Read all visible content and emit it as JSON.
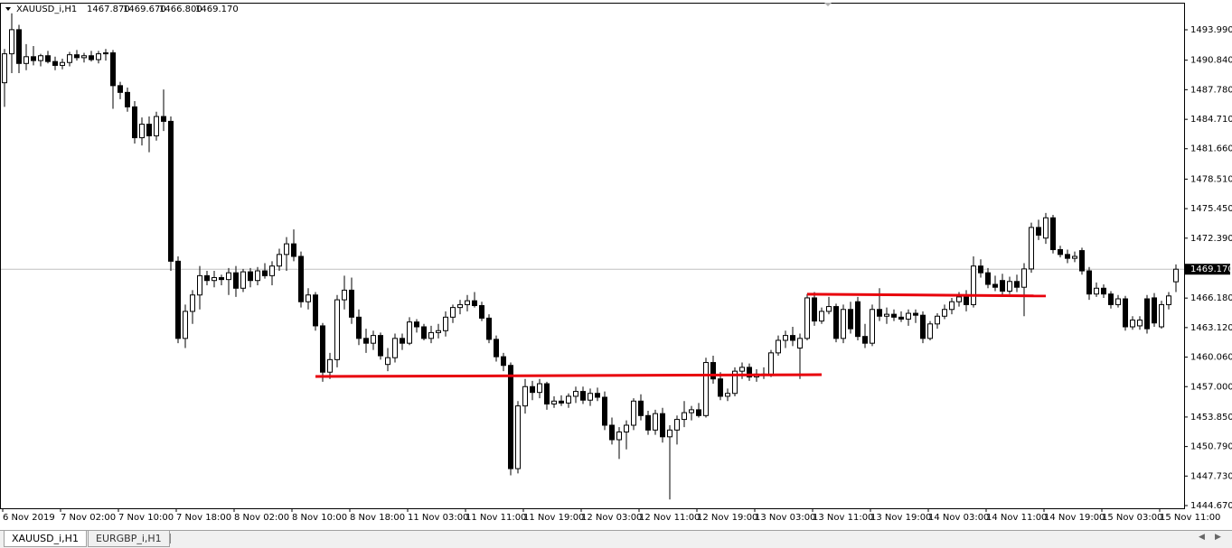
{
  "header": {
    "symbol": "XAUUSD_i,H1",
    "ohlc": [
      {
        "value": 1467.87,
        "label": "1467.870"
      },
      {
        "value": 1469.67,
        "label": "1469.670"
      },
      {
        "value": 1466.8,
        "label": "1466.800"
      },
      {
        "value": 1469.17,
        "label": "1469.170"
      }
    ]
  },
  "chart_data": {
    "type": "candlestick",
    "categories": [
      "6 Nov 2019",
      null,
      null,
      null,
      null,
      null,
      null,
      null,
      "7 Nov 02:00",
      null,
      null,
      null,
      null,
      null,
      null,
      null,
      "7 Nov 10:00",
      null,
      null,
      null,
      null,
      null,
      null,
      null,
      "7 Nov 18:00",
      null,
      null,
      null,
      null,
      null,
      null,
      null,
      "8 Nov 02:00",
      null,
      null,
      null,
      null,
      null,
      null,
      null,
      "8 Nov 10:00",
      null,
      null,
      null,
      null,
      null,
      null,
      null,
      "8 Nov 18:00",
      null,
      null,
      null,
      null,
      null,
      null,
      null,
      "11 Nov 03:00",
      null,
      null,
      null,
      null,
      null,
      null,
      null,
      "11 Nov 11:00",
      null,
      null,
      null,
      null,
      null,
      null,
      null,
      "11 Nov 19:00",
      null,
      null,
      null,
      null,
      null,
      null,
      null,
      "12 Nov 03:00",
      null,
      null,
      null,
      null,
      null,
      null,
      null,
      "12 Nov 11:00",
      null,
      null,
      null,
      null,
      null,
      null,
      null,
      "12 Nov 19:00",
      null,
      null,
      null,
      null,
      null,
      null,
      null,
      "13 Nov 03:00",
      null,
      null,
      null,
      null,
      null,
      null,
      null,
      "13 Nov 11:00",
      null,
      null,
      null,
      null,
      null,
      null,
      null,
      "13 Nov 19:00",
      null,
      null,
      null,
      null,
      null,
      null,
      null,
      "14 Nov 03:00",
      null,
      null,
      null,
      null,
      null,
      null,
      null,
      "14 Nov 11:00",
      null,
      null,
      null,
      null,
      null,
      null,
      null,
      "14 Nov 19:00",
      null,
      null,
      null,
      null,
      null,
      null,
      null,
      "15 Nov 03:00",
      null,
      null,
      null,
      null,
      null,
      null,
      null,
      "15 Nov 11:00",
      null,
      null
    ],
    "ohlc": [
      [
        1488.5,
        1492,
        1486,
        1491.5
      ],
      [
        1491.5,
        1495.7,
        1489.5,
        1494
      ],
      [
        1494,
        1494.5,
        1489.5,
        1490.5
      ],
      [
        1490.5,
        1492.5,
        1489.8,
        1491.2
      ],
      [
        1491.2,
        1492.3,
        1490.3,
        1490.8
      ],
      [
        1490.8,
        1491.5,
        1490.2,
        1491.3
      ],
      [
        1491.3,
        1491.8,
        1490.5,
        1490.7
      ],
      [
        1490.7,
        1491.2,
        1489.8,
        1490.3
      ],
      [
        1490.3,
        1491,
        1489.9,
        1490.6
      ],
      [
        1490.6,
        1491.7,
        1490.2,
        1491.4
      ],
      [
        1491.4,
        1491.9,
        1490.8,
        1491.1
      ],
      [
        1491.1,
        1491.6,
        1490.6,
        1491.3
      ],
      [
        1491.3,
        1491.8,
        1490.7,
        1490.9
      ],
      [
        1490.9,
        1491.8,
        1490.5,
        1491.5
      ],
      [
        1491.5,
        1492,
        1490.8,
        1491.6
      ],
      [
        1491.6,
        1491.9,
        1485.8,
        1488.2
      ],
      [
        1488.2,
        1488.6,
        1486.8,
        1487.5
      ],
      [
        1487.5,
        1488,
        1485.5,
        1486
      ],
      [
        1486,
        1486.6,
        1482.2,
        1482.8
      ],
      [
        1482.8,
        1484.9,
        1482,
        1484.2
      ],
      [
        1484.2,
        1485,
        1481.3,
        1483
      ],
      [
        1483,
        1485.5,
        1482.5,
        1485
      ],
      [
        1485,
        1487.8,
        1483.5,
        1484.5
      ],
      [
        1484.5,
        1485,
        1469,
        1470
      ],
      [
        1470,
        1470.5,
        1461.5,
        1462
      ],
      [
        1462,
        1465.5,
        1461,
        1464.8
      ],
      [
        1464.8,
        1467,
        1463.5,
        1466.5
      ],
      [
        1466.5,
        1469.5,
        1465,
        1468.5
      ],
      [
        1468.5,
        1469,
        1467.5,
        1468
      ],
      [
        1468,
        1469,
        1467.3,
        1468.3
      ],
      [
        1468.3,
        1468.6,
        1467.5,
        1468.1
      ],
      [
        1468.1,
        1469.3,
        1466.5,
        1468.8
      ],
      [
        1468.8,
        1469.5,
        1466.3,
        1467.2
      ],
      [
        1467.2,
        1469.2,
        1466.8,
        1468.9
      ],
      [
        1468.9,
        1469.3,
        1467.3,
        1468
      ],
      [
        1468,
        1469.4,
        1467.5,
        1469
      ],
      [
        1469,
        1469.8,
        1468.2,
        1468.5
      ],
      [
        1468.5,
        1470,
        1467.5,
        1469.5
      ],
      [
        1469.5,
        1471.3,
        1469,
        1470.7
      ],
      [
        1470.7,
        1472.5,
        1469,
        1471.8
      ],
      [
        1471.8,
        1473.3,
        1470,
        1470.5
      ],
      [
        1470.5,
        1471,
        1465.2,
        1465.8
      ],
      [
        1465.8,
        1467.2,
        1465,
        1466.5
      ],
      [
        1466.5,
        1466.8,
        1462.8,
        1463.3
      ],
      [
        1463.3,
        1463.6,
        1457.5,
        1458.5
      ],
      [
        1458.5,
        1460.5,
        1457.8,
        1459.8
      ],
      [
        1459.8,
        1466.5,
        1459,
        1466
      ],
      [
        1466,
        1468.5,
        1465,
        1467
      ],
      [
        1467,
        1468.3,
        1463.5,
        1464.2
      ],
      [
        1464.2,
        1465,
        1461.3,
        1462
      ],
      [
        1462,
        1463,
        1460.5,
        1461.5
      ],
      [
        1461.5,
        1462.8,
        1460.8,
        1462.3
      ],
      [
        1462.3,
        1462.6,
        1459.8,
        1460.2
      ],
      [
        1459.3,
        1461,
        1458.6,
        1460
      ],
      [
        1460,
        1462.5,
        1459.5,
        1462
      ],
      [
        1462,
        1462.5,
        1460.8,
        1461.5
      ],
      [
        1461.5,
        1464.2,
        1461.3,
        1463.7
      ],
      [
        1463.7,
        1464,
        1462.6,
        1463.2
      ],
      [
        1463.2,
        1463.5,
        1461.8,
        1462
      ],
      [
        1462,
        1463.3,
        1461.5,
        1462.6
      ],
      [
        1462.6,
        1463.5,
        1462,
        1462.8
      ],
      [
        1462.8,
        1464.8,
        1462.2,
        1464.2
      ],
      [
        1464.2,
        1465.5,
        1463.6,
        1465.2
      ],
      [
        1465.2,
        1466,
        1464.5,
        1465.5
      ],
      [
        1465.5,
        1466.5,
        1464.8,
        1465.9
      ],
      [
        1465.9,
        1466.8,
        1465.2,
        1465.4
      ],
      [
        1465.4,
        1465.8,
        1463.8,
        1464.1
      ],
      [
        1464.1,
        1464.5,
        1461.5,
        1461.9
      ],
      [
        1461.9,
        1462.3,
        1459.6,
        1460.1
      ],
      [
        1460.1,
        1460.5,
        1458.6,
        1459.2
      ],
      [
        1459.2,
        1459.5,
        1447.8,
        1448.5
      ],
      [
        1448.5,
        1455.5,
        1448,
        1455
      ],
      [
        1455,
        1457.8,
        1454.2,
        1457
      ],
      [
        1457,
        1457.6,
        1455.6,
        1456.4
      ],
      [
        1456.4,
        1457.8,
        1455.8,
        1457.3
      ],
      [
        1457.3,
        1457.5,
        1454.6,
        1455.2
      ],
      [
        1455.2,
        1456,
        1454.8,
        1455.5
      ],
      [
        1455.5,
        1456.1,
        1455,
        1455.3
      ],
      [
        1455.3,
        1456.3,
        1454.8,
        1456
      ],
      [
        1456,
        1457,
        1455.3,
        1456.5
      ],
      [
        1456.5,
        1457,
        1455.2,
        1455.6
      ],
      [
        1455.6,
        1456.8,
        1455,
        1456.3
      ],
      [
        1456.3,
        1456.9,
        1455.5,
        1455.9
      ],
      [
        1455.9,
        1456.5,
        1452.5,
        1453
      ],
      [
        1453,
        1453.8,
        1451,
        1451.5
      ],
      [
        1451.5,
        1452.8,
        1449.5,
        1452.3
      ],
      [
        1452.3,
        1453.5,
        1450.5,
        1453
      ],
      [
        1453,
        1455.8,
        1452.5,
        1455.5
      ],
      [
        1455.5,
        1456.2,
        1453.5,
        1454
      ],
      [
        1454,
        1454.5,
        1452,
        1452.5
      ],
      [
        1452.5,
        1454.6,
        1452,
        1454.2
      ],
      [
        1454.2,
        1454.8,
        1451.2,
        1451.8
      ],
      [
        1451.8,
        1453,
        1445.3,
        1452.5
      ],
      [
        1452.5,
        1454,
        1451,
        1453.6
      ],
      [
        1453.6,
        1455.5,
        1452.8,
        1454.3
      ],
      [
        1454.3,
        1455,
        1453.5,
        1454.6
      ],
      [
        1454.6,
        1455.3,
        1453.8,
        1454
      ],
      [
        1454,
        1460,
        1453.8,
        1459.5
      ],
      [
        1459.5,
        1460.2,
        1457.3,
        1457.8
      ],
      [
        1457.8,
        1458.5,
        1455.6,
        1456
      ],
      [
        1456,
        1456.8,
        1455.5,
        1456.3
      ],
      [
        1456.3,
        1459,
        1456,
        1458.6
      ],
      [
        1458.6,
        1459.5,
        1457.8,
        1459
      ],
      [
        1459,
        1459.4,
        1457.6,
        1458
      ],
      [
        1458,
        1458.8,
        1457.5,
        1458.3
      ],
      [
        1458.3,
        1459,
        1457.8,
        1458.2
      ],
      [
        1458.2,
        1460.8,
        1458,
        1460.5
      ],
      [
        1460.5,
        1462.3,
        1460.2,
        1461.8
      ],
      [
        1461.8,
        1462.8,
        1461,
        1462.3
      ],
      [
        1462.3,
        1463.2,
        1461.2,
        1461.8
      ],
      [
        1461,
        1462.5,
        1457.8,
        1462
      ],
      [
        1462,
        1466.6,
        1461.8,
        1466.2
      ],
      [
        1466.2,
        1466.8,
        1463.3,
        1463.8
      ],
      [
        1463.8,
        1465.2,
        1463.5,
        1464.8
      ],
      [
        1464.8,
        1466.3,
        1464.5,
        1465.3
      ],
      [
        1465.3,
        1465.6,
        1461.6,
        1462
      ],
      [
        1462,
        1465.5,
        1461.5,
        1465
      ],
      [
        1465,
        1465.8,
        1462.5,
        1463
      ],
      [
        1465.8,
        1466.3,
        1461.8,
        1462.2
      ],
      [
        1462.2,
        1463.5,
        1461,
        1461.5
      ],
      [
        1461.5,
        1465.5,
        1461.2,
        1465
      ],
      [
        1465,
        1467.2,
        1463.8,
        1464.3
      ],
      [
        1464.3,
        1465.2,
        1463.5,
        1464.5
      ],
      [
        1464.5,
        1465,
        1463.8,
        1464.2
      ],
      [
        1464.2,
        1464.8,
        1463.7,
        1464
      ],
      [
        1464,
        1465,
        1463.3,
        1464.6
      ],
      [
        1464.6,
        1465,
        1463.6,
        1464.4
      ],
      [
        1464.4,
        1464.8,
        1461.5,
        1462
      ],
      [
        1462,
        1463.8,
        1461.8,
        1463.5
      ],
      [
        1463.5,
        1464.6,
        1463,
        1464.3
      ],
      [
        1464.3,
        1465.5,
        1464,
        1465
      ],
      [
        1465,
        1466.2,
        1464.5,
        1465.8
      ],
      [
        1465.8,
        1466.8,
        1465.3,
        1466.3
      ],
      [
        1466.3,
        1467,
        1464.8,
        1465.5
      ],
      [
        1465.5,
        1470.5,
        1465.2,
        1469.5
      ],
      [
        1469.5,
        1470.2,
        1468.3,
        1468.8
      ],
      [
        1468.8,
        1469.3,
        1467.2,
        1467.6
      ],
      [
        1467.6,
        1468.5,
        1466.9,
        1467.3
      ],
      [
        1468,
        1468.7,
        1466.5,
        1466.9
      ],
      [
        1466.9,
        1468.4,
        1466.6,
        1467.9
      ],
      [
        1467.9,
        1468.6,
        1466.8,
        1467.3
      ],
      [
        1467.3,
        1469.8,
        1464.3,
        1469.2
      ],
      [
        1469.2,
        1474,
        1468.8,
        1473.5
      ],
      [
        1473.5,
        1474.3,
        1472.2,
        1472.7
      ],
      [
        1472.4,
        1475,
        1471.8,
        1474.5
      ],
      [
        1474.5,
        1474.8,
        1470.8,
        1471.2
      ],
      [
        1471.2,
        1471.6,
        1470.4,
        1470.7
      ],
      [
        1470.7,
        1471.2,
        1469.8,
        1470.3
      ],
      [
        1470.3,
        1471,
        1469.9,
        1470.5
      ],
      [
        1471.1,
        1471.4,
        1468.6,
        1469
      ],
      [
        1469,
        1469.4,
        1466,
        1466.6
      ],
      [
        1466.6,
        1467.8,
        1466.3,
        1467.2
      ],
      [
        1467.2,
        1467.6,
        1466.2,
        1466.6
      ],
      [
        1466.6,
        1466.9,
        1465.1,
        1465.5
      ],
      [
        1465.5,
        1466.5,
        1465.2,
        1466.1
      ],
      [
        1466.1,
        1466.4,
        1462.8,
        1463.2
      ],
      [
        1463.2,
        1464.3,
        1462.9,
        1463.9
      ],
      [
        1463.3,
        1464.3,
        1462.9,
        1463.9
      ],
      [
        1466.1,
        1466.5,
        1462.5,
        1463
      ],
      [
        1466.2,
        1466.7,
        1463.2,
        1463.6
      ],
      [
        1463.2,
        1465.9,
        1463,
        1465.5
      ],
      [
        1465.5,
        1466.8,
        1465,
        1466.4
      ],
      [
        1467.87,
        1469.67,
        1466.8,
        1469.17
      ]
    ],
    "ylim": [
      1444.39,
      1496.61
    ],
    "yticks": [
      {
        "value": 1493.99,
        "label": "1493.990"
      },
      {
        "value": 1490.84,
        "label": "1490.840"
      },
      {
        "value": 1487.78,
        "label": "1487.780"
      },
      {
        "value": 1484.71,
        "label": "1484.710"
      },
      {
        "value": 1481.66,
        "label": "1481.660"
      },
      {
        "value": 1478.51,
        "label": "1478.510"
      },
      {
        "value": 1475.45,
        "label": "1475.450"
      },
      {
        "value": 1472.39,
        "label": "1472.390"
      },
      {
        "value": 1466.18,
        "label": "1466.180"
      },
      {
        "value": 1463.12,
        "label": "1463.120"
      },
      {
        "value": 1460.06,
        "label": "1460.060"
      },
      {
        "value": 1457,
        "label": "1457.000"
      },
      {
        "value": 1453.85,
        "label": "1453.850"
      },
      {
        "value": 1450.79,
        "label": "1450.790"
      },
      {
        "value": 1447.73,
        "label": "1447.730"
      },
      {
        "value": 1444.67,
        "label": "1444.670"
      }
    ],
    "current_price": {
      "value": 1469.17,
      "label": "1469.170"
    },
    "lines": [
      {
        "values": [
          1458.05,
          1458.24
        ],
        "from": 43,
        "to": 113,
        "color": "#e8000b"
      },
      {
        "values": [
          1466.58,
          1466.4
        ],
        "from": 111,
        "to": 144,
        "color": "#e8000b"
      }
    ]
  },
  "tabs": [
    "XAUUSD_i,H1",
    "EURGBP_i,H1"
  ]
}
